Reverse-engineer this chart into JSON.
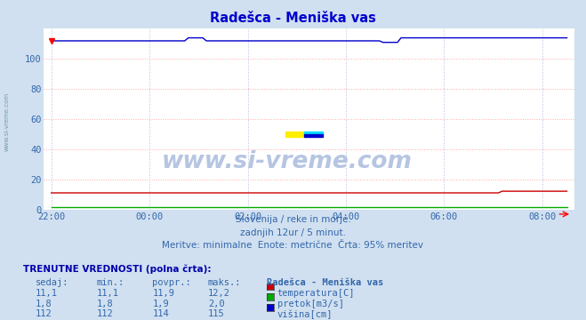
{
  "title": "Radešca - Meniška vas",
  "bg_color": "#d0e0f0",
  "plot_bg_color": "#ffffff",
  "grid_color": "#ffbbbb",
  "grid_color_v": "#ccccee",
  "x_labels": [
    "22:00",
    "00:00",
    "02:00",
    "04:00",
    "06:00",
    "08:00"
  ],
  "x_tick_pos": [
    0,
    2,
    4,
    6,
    8,
    10
  ],
  "ylim": [
    0,
    120
  ],
  "yticks": [
    0,
    20,
    40,
    60,
    80,
    100
  ],
  "n_points": 144,
  "temp_value": 11.1,
  "temp_max": 12.2,
  "flow_value": 1.8,
  "flow_max": 2.0,
  "height_value": 112,
  "height_max": 115,
  "temp_color": "#cc0000",
  "flow_color": "#00aa00",
  "height_color": "#0000cc",
  "subtitle1": "Slovenija / reke in morje.",
  "subtitle2": "zadnjih 12ur / 5 minut.",
  "subtitle3": "Meritve: minimalne  Enote: metrične  Črta: 95% meritev",
  "table_header": "TRENUTNE VREDNOSTI (polna črta):",
  "col_headers": [
    "sedaj:",
    "min.:",
    "povpr.:",
    "maks.:",
    "Radešca - Meniška vas"
  ],
  "row1": [
    "11,1",
    "11,1",
    "11,9",
    "12,2"
  ],
  "row2": [
    "1,8",
    "1,8",
    "1,9",
    "2,0"
  ],
  "row3": [
    "112",
    "112",
    "114",
    "115"
  ],
  "legend_labels": [
    "temperatura[C]",
    "pretok[m3/s]",
    "višina[cm]"
  ],
  "legend_colors": [
    "#cc0000",
    "#00aa00",
    "#0000cc"
  ],
  "watermark": "www.si-vreme.com",
  "left_label": "www.si-vreme.com"
}
